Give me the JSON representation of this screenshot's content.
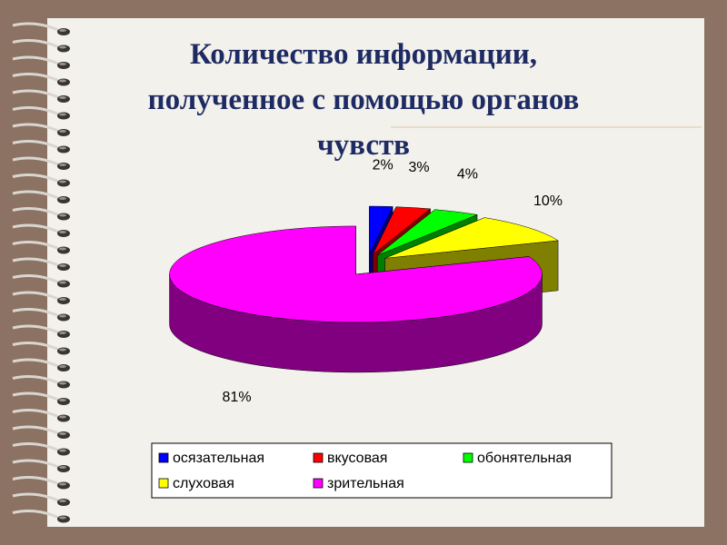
{
  "chart_data": {
    "type": "pie3d",
    "title": "Количество информации, полученное с помощью органов чувств",
    "categories": [
      "осязательная",
      "вкусовая",
      "обонятельная",
      "слуховая",
      "зрительная"
    ],
    "values": [
      2,
      3,
      4,
      10,
      81
    ],
    "value_labels": [
      "2%",
      "3%",
      "4%",
      "10%",
      "81%"
    ],
    "colors": [
      "#0000ff",
      "#ff0000",
      "#00ff00",
      "#ffff00",
      "#ff00ff"
    ],
    "legend": "bottom"
  }
}
